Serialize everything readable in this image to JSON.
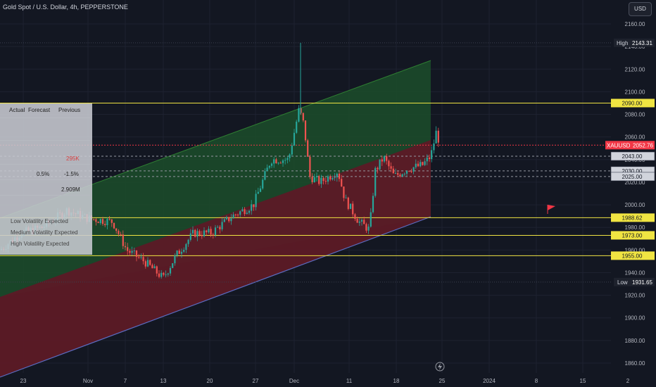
{
  "header": {
    "title": "Gold Spot / U.S. Dollar, 4h, PEPPERSTONE",
    "currency_button": "USD"
  },
  "price_axis": {
    "ticks": [
      "2160.00",
      "2140.00",
      "2120.00",
      "2100.00",
      "2080.00",
      "2060.00",
      "2040.00",
      "2020.00",
      "2000.00",
      "1980.00",
      "1960.00",
      "1940.00",
      "1920.00",
      "1900.00",
      "1880.00",
      "1860.00"
    ]
  },
  "time_axis": {
    "labels": [
      "23",
      "Nov",
      "7",
      "13",
      "20",
      "27",
      "Dec",
      "11",
      "18",
      "25",
      "2024",
      "8",
      "15",
      "2"
    ]
  },
  "markers": {
    "high_label": "High",
    "high_value": "2143.31",
    "low_label": "Low",
    "low_value": "1931.65",
    "symbol": "XAUUSD",
    "last_price": "2052.76"
  },
  "level_tags": [
    "2090.00",
    "2043.00",
    "2030.00",
    "2025.00",
    "1988.62",
    "1973.00",
    "1955.00"
  ],
  "lines": {
    "yellow_levels": [
      2090.0,
      1988.62,
      1973.0,
      1955.0
    ],
    "dashed_levels": [
      2043.0,
      2030.0,
      2025.0
    ],
    "high_level": 2143.31,
    "low_level": 1931.65,
    "price_level": 2052.76
  },
  "events_panel": {
    "headers": [
      "Actual",
      "Forecast",
      "Previous"
    ],
    "values": [
      "295K",
      "0.5%",
      "-1.5%",
      "2.909M"
    ],
    "legend": [
      "Low Volatility Expected",
      "Medium Volatility Expected",
      "High Volatility Expected"
    ]
  },
  "colors": {
    "background": "#131722",
    "up_candle": "#26a69a",
    "down_candle": "#ef5350",
    "channel_upper": "#1f5a2c",
    "channel_lower": "#6b1d28",
    "level_line": "#f0e442",
    "price_tag": "#f23645"
  },
  "chart_data": {
    "type": "candlestick",
    "symbol": "XAUUSD",
    "timeframe": "4h",
    "y_range": [
      1855,
      2165
    ],
    "approx_price_path": [
      {
        "x": "23",
        "price": 1980
      },
      {
        "x": "Nov",
        "price": 1990
      },
      {
        "x": "7",
        "price": 1970
      },
      {
        "x": "13",
        "price": 1935
      },
      {
        "x": "20",
        "price": 1980
      },
      {
        "x": "27",
        "price": 2005
      },
      {
        "x": "Dec",
        "price": 2070
      },
      {
        "x": "Dec",
        "price": 2143.31
      },
      {
        "x": "11",
        "price": 1978
      },
      {
        "x": "18",
        "price": 2030
      },
      {
        "x": "25",
        "price": 2052.76
      }
    ]
  }
}
